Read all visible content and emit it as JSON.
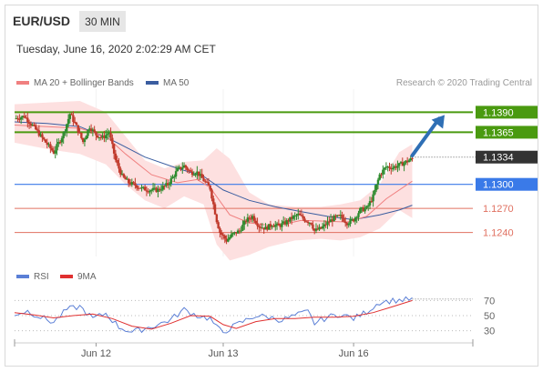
{
  "header": {
    "pair": "EUR/USD",
    "timeframe": "30 MIN",
    "datetime": "Tuesday, June 16, 2020 2:02:29 AM CET"
  },
  "legend": {
    "ma20_label": "MA 20 + Bollinger Bands",
    "ma50_label": "MA 50",
    "credit": "Research © 2020 Trading Central",
    "rsi_label": "RSI",
    "ma9_label": "9MA"
  },
  "colors": {
    "up_candle": "#2e8b2e",
    "down_candle": "#c0392b",
    "ma20": "#f08080",
    "ma50": "#3a5da0",
    "bollinger_fill": "#fde0e0",
    "resistance": "#4a9a10",
    "support_blue": "#3a7ae8",
    "support_red": "#e07060",
    "arrow": "#2f6fb5",
    "current_price_bg": "#333333",
    "rsi_line": "#5b7fd6",
    "ma9_line": "#e03030"
  },
  "chart_data": [
    {
      "type": "candlestick",
      "title": "EUR/USD",
      "x_tick_labels": [
        "Jun 12",
        "Jun 13",
        "Jun 16"
      ],
      "y_range": [
        1.121,
        1.1412
      ],
      "current_price": 1.1334,
      "levels": [
        {
          "label": "1.1390",
          "value": 1.139,
          "kind": "resistance"
        },
        {
          "label": "1.1365",
          "value": 1.1365,
          "kind": "resistance"
        },
        {
          "label": "1.1334",
          "value": 1.1334,
          "kind": "current"
        },
        {
          "label": "1.1300",
          "value": 1.13,
          "kind": "pivot"
        },
        {
          "label": "1.1270",
          "value": 1.127,
          "kind": "support"
        },
        {
          "label": "1.1240",
          "value": 1.124,
          "kind": "support"
        }
      ],
      "price_path": [
        [
          0,
          1.1382
        ],
        [
          3,
          1.1385
        ],
        [
          6,
          1.1371
        ],
        [
          9,
          1.1355
        ],
        [
          12,
          1.134
        ],
        [
          15,
          1.1363
        ],
        [
          17,
          1.1388
        ],
        [
          19,
          1.1372
        ],
        [
          21,
          1.1353
        ],
        [
          23,
          1.1372
        ],
        [
          25,
          1.1362
        ],
        [
          27,
          1.1358
        ],
        [
          29,
          1.1365
        ],
        [
          31,
          1.133
        ],
        [
          33,
          1.131
        ],
        [
          35,
          1.1302
        ],
        [
          37,
          1.1299
        ],
        [
          39,
          1.1295
        ],
        [
          41,
          1.1293
        ],
        [
          44,
          1.1293
        ],
        [
          47,
          1.13
        ],
        [
          50,
          1.1318
        ],
        [
          52,
          1.1323
        ],
        [
          54,
          1.1315
        ],
        [
          56,
          1.1315
        ],
        [
          58,
          1.1305
        ],
        [
          60,
          1.1295
        ],
        [
          62,
          1.1255
        ],
        [
          63,
          1.124
        ],
        [
          65,
          1.123
        ],
        [
          67,
          1.1238
        ],
        [
          69,
          1.1242
        ],
        [
          71,
          1.1255
        ],
        [
          73,
          1.126
        ],
        [
          75,
          1.1248
        ],
        [
          77,
          1.1245
        ],
        [
          79,
          1.125
        ],
        [
          81,
          1.1248
        ],
        [
          83,
          1.1252
        ],
        [
          85,
          1.1258
        ],
        [
          87,
          1.1262
        ],
        [
          89,
          1.1256
        ],
        [
          91,
          1.1252
        ],
        [
          92,
          1.1242
        ],
        [
          94,
          1.1245
        ],
        [
          96,
          1.1252
        ],
        [
          98,
          1.1258
        ],
        [
          100,
          1.126
        ],
        [
          102,
          1.1252
        ],
        [
          104,
          1.1256
        ],
        [
          106,
          1.1268
        ],
        [
          108,
          1.127
        ],
        [
          110,
          1.1285
        ],
        [
          112,
          1.1312
        ],
        [
          114,
          1.1322
        ],
        [
          116,
          1.1321
        ],
        [
          118,
          1.1324
        ],
        [
          120,
          1.1328
        ],
        [
          122,
          1.1332
        ]
      ],
      "ma20_path": [
        [
          0,
          1.1374
        ],
        [
          10,
          1.1372
        ],
        [
          20,
          1.137
        ],
        [
          28,
          1.136
        ],
        [
          34,
          1.1338
        ],
        [
          42,
          1.1312
        ],
        [
          50,
          1.1302
        ],
        [
          56,
          1.1306
        ],
        [
          60,
          1.1296
        ],
        [
          66,
          1.1262
        ],
        [
          72,
          1.1252
        ],
        [
          80,
          1.1248
        ],
        [
          88,
          1.1255
        ],
        [
          96,
          1.1254
        ],
        [
          102,
          1.1253
        ],
        [
          108,
          1.126
        ],
        [
          114,
          1.1282
        ],
        [
          122,
          1.1304
        ]
      ],
      "ma50_path": [
        [
          0,
          1.1378
        ],
        [
          10,
          1.1376
        ],
        [
          20,
          1.1372
        ],
        [
          30,
          1.1355
        ],
        [
          40,
          1.1334
        ],
        [
          50,
          1.132
        ],
        [
          58,
          1.131
        ],
        [
          64,
          1.1293
        ],
        [
          72,
          1.128
        ],
        [
          80,
          1.1272
        ],
        [
          88,
          1.1266
        ],
        [
          96,
          1.126
        ],
        [
          104,
          1.1256
        ],
        [
          112,
          1.1262
        ],
        [
          118,
          1.1268
        ],
        [
          122,
          1.1274
        ]
      ],
      "bollinger_upper": [
        [
          0,
          1.14
        ],
        [
          10,
          1.1402
        ],
        [
          20,
          1.1404
        ],
        [
          28,
          1.139
        ],
        [
          34,
          1.136
        ],
        [
          40,
          1.133
        ],
        [
          46,
          1.132
        ],
        [
          52,
          1.1328
        ],
        [
          58,
          1.133
        ],
        [
          62,
          1.1345
        ],
        [
          66,
          1.1332
        ],
        [
          72,
          1.129
        ],
        [
          78,
          1.1275
        ],
        [
          86,
          1.1272
        ],
        [
          94,
          1.1272
        ],
        [
          100,
          1.1275
        ],
        [
          106,
          1.128
        ],
        [
          112,
          1.13
        ],
        [
          118,
          1.134
        ],
        [
          122,
          1.135
        ]
      ],
      "bollinger_lower": [
        [
          0,
          1.1352
        ],
        [
          10,
          1.1344
        ],
        [
          20,
          1.1338
        ],
        [
          28,
          1.1325
        ],
        [
          34,
          1.13
        ],
        [
          40,
          1.128
        ],
        [
          46,
          1.127
        ],
        [
          52,
          1.1285
        ],
        [
          58,
          1.1275
        ],
        [
          62,
          1.1225
        ],
        [
          66,
          1.1205
        ],
        [
          72,
          1.1212
        ],
        [
          78,
          1.1222
        ],
        [
          86,
          1.123
        ],
        [
          94,
          1.1232
        ],
        [
          100,
          1.123
        ],
        [
          106,
          1.1234
        ],
        [
          112,
          1.1245
        ],
        [
          118,
          1.1268
        ],
        [
          122,
          1.1258
        ]
      ],
      "projection": {
        "from": [
          122,
          1.1336
        ],
        "to": [
          128,
          1.139
        ]
      }
    },
    {
      "type": "line",
      "title": "RSI",
      "yticks": [
        30,
        50,
        70
      ],
      "ylim": [
        15,
        85
      ],
      "series": [
        {
          "name": "RSI",
          "values": [
            [
              0,
              52
            ],
            [
              4,
              56
            ],
            [
              8,
              48
            ],
            [
              12,
              41
            ],
            [
              16,
              58
            ],
            [
              20,
              62
            ],
            [
              24,
              46
            ],
            [
              28,
              53
            ],
            [
              32,
              35
            ],
            [
              36,
              28
            ],
            [
              40,
              33
            ],
            [
              44,
              38
            ],
            [
              48,
              45
            ],
            [
              52,
              58
            ],
            [
              56,
              50
            ],
            [
              60,
              46
            ],
            [
              62,
              34
            ],
            [
              64,
              28
            ],
            [
              66,
              33
            ],
            [
              70,
              42
            ],
            [
              74,
              50
            ],
            [
              78,
              48
            ],
            [
              82,
              44
            ],
            [
              86,
              50
            ],
            [
              90,
              55
            ],
            [
              92,
              40
            ],
            [
              96,
              48
            ],
            [
              100,
              52
            ],
            [
              104,
              46
            ],
            [
              108,
              55
            ],
            [
              112,
              68
            ],
            [
              116,
              70
            ],
            [
              120,
              71
            ],
            [
              122,
              72
            ]
          ]
        },
        {
          "name": "9MA",
          "values": [
            [
              0,
              54
            ],
            [
              6,
              51
            ],
            [
              12,
              47
            ],
            [
              18,
              50
            ],
            [
              24,
              52
            ],
            [
              30,
              46
            ],
            [
              36,
              36
            ],
            [
              42,
              32
            ],
            [
              48,
              40
            ],
            [
              54,
              50
            ],
            [
              60,
              49
            ],
            [
              64,
              38
            ],
            [
              68,
              33
            ],
            [
              74,
              42
            ],
            [
              80,
              46
            ],
            [
              86,
              46
            ],
            [
              92,
              48
            ],
            [
              98,
              48
            ],
            [
              104,
              49
            ],
            [
              110,
              54
            ],
            [
              116,
              62
            ],
            [
              122,
              70
            ]
          ]
        }
      ]
    }
  ]
}
